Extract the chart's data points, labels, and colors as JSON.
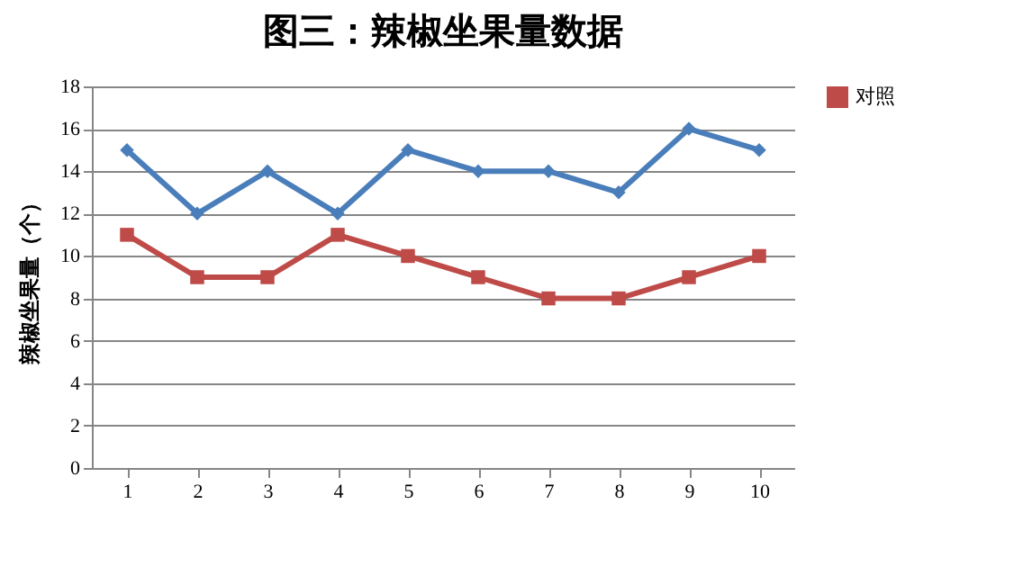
{
  "chart_data": {
    "type": "line",
    "title": "图三：辣椒坐果量数据",
    "ylabel": "辣椒坐果量（个）",
    "categories": [
      "1",
      "2",
      "3",
      "4",
      "5",
      "6",
      "7",
      "8",
      "9",
      "10"
    ],
    "series": [
      {
        "color": "#4a7ebb",
        "marker": "diamond",
        "values": [
          15,
          12,
          14,
          12,
          15,
          14,
          14,
          13,
          16,
          15
        ]
      },
      {
        "name": "对照",
        "color": "#be4b48",
        "marker": "square",
        "values": [
          11,
          9,
          9,
          11,
          10,
          9,
          8,
          8,
          9,
          10
        ]
      }
    ],
    "ylim": [
      0,
      18
    ],
    "yticks": [
      0,
      2,
      4,
      6,
      8,
      10,
      12,
      14,
      16,
      18
    ],
    "grid": "y",
    "legend": "right"
  }
}
